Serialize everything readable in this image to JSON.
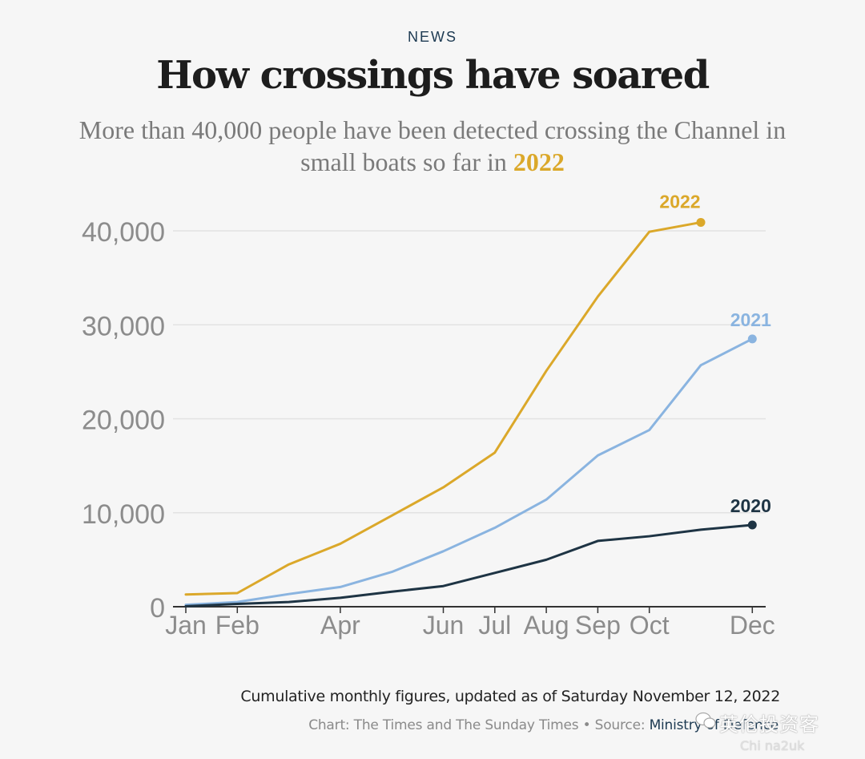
{
  "header": {
    "kicker": "NEWS",
    "title": "How crossings have soared",
    "subtitle_prefix": "More than 40,000 people have been detected crossing the Channel in small boats so far in ",
    "subtitle_highlight": "2022"
  },
  "chart_data": {
    "type": "line",
    "title": "How crossings have soared",
    "subtitle": "More than 40,000 people have been detected crossing the Channel in small boats so far in 2022",
    "xlabel": "",
    "ylabel": "",
    "ylim": [
      0,
      40000
    ],
    "yticks": [
      0,
      10000,
      20000,
      30000,
      40000
    ],
    "ytick_labels": [
      "0",
      "10,000",
      "20,000",
      "30,000",
      "40,000"
    ],
    "xticks": [
      "Jan",
      "Feb",
      "Apr",
      "Jun",
      "Jul",
      "Aug",
      "Sep",
      "Oct",
      "Dec"
    ],
    "xtick_months": [
      1,
      2,
      4,
      6,
      7,
      8,
      9,
      10,
      12
    ],
    "grid": true,
    "legend": "direct-labels-at-line-ends",
    "series": [
      {
        "name": "2022",
        "color": "#dba82a",
        "months": [
          1,
          2,
          3,
          4,
          5,
          6,
          7,
          8,
          9,
          10,
          11
        ],
        "values": [
          1300,
          1450,
          4500,
          6700,
          9700,
          12700,
          16400,
          25100,
          33000,
          39900,
          40900
        ]
      },
      {
        "name": "2021",
        "color": "#8ab4e0",
        "months": [
          1,
          2,
          3,
          4,
          5,
          6,
          7,
          8,
          9,
          10,
          11,
          12
        ],
        "values": [
          200,
          500,
          1350,
          2100,
          3700,
          5900,
          8400,
          11400,
          16100,
          18800,
          25700,
          28500
        ]
      },
      {
        "name": "2020",
        "color": "#1e3444",
        "months": [
          1,
          2,
          3,
          4,
          5,
          6,
          7,
          8,
          9,
          10,
          11,
          12
        ],
        "values": [
          50,
          300,
          500,
          950,
          1600,
          2200,
          3600,
          5000,
          7000,
          7500,
          8200,
          8700
        ]
      }
    ]
  },
  "footer": {
    "note": "Cumulative monthly figures, updated as of Saturday November 12, 2022",
    "credit_prefix": "Chart: The Times and The Sunday Times • Source: ",
    "credit_link": "Ministry of Defence"
  },
  "watermark": {
    "main": "英伦投资客",
    "sub": "Chi na2uk"
  }
}
